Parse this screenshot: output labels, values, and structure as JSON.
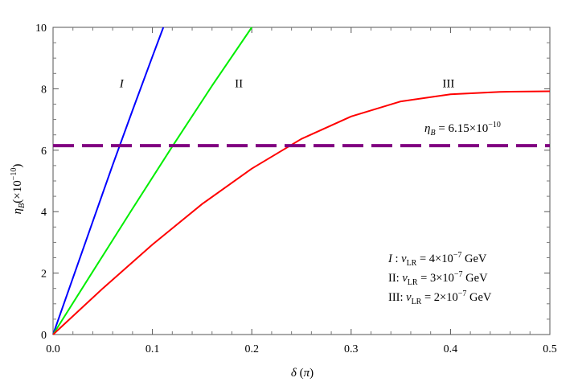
{
  "chart_data": {
    "type": "line",
    "xlabel": "δ (π)",
    "ylabel": "η_B(×10^-10)",
    "xlim": [
      0,
      0.5
    ],
    "ylim": [
      0,
      10
    ],
    "xticks": [
      0.0,
      0.1,
      0.2,
      0.3,
      0.4,
      0.5
    ],
    "xtick_labels": [
      "0.0",
      "0.1",
      "0.2",
      "0.3",
      "0.4",
      "0.5"
    ],
    "yticks": [
      0,
      2,
      4,
      6,
      8,
      10
    ],
    "ytick_labels": [
      "0",
      "2",
      "4",
      "6",
      "8",
      "10"
    ],
    "grid": false,
    "series": [
      {
        "name": "I",
        "color": "#0000ff",
        "x": [
          0,
          0.02,
          0.04,
          0.06,
          0.08,
          0.1,
          0.111
        ],
        "y": [
          0,
          1.84,
          3.68,
          5.52,
          7.3,
          9.05,
          10.0
        ]
      },
      {
        "name": "II",
        "color": "#00ee00",
        "x": [
          0,
          0.04,
          0.08,
          0.12,
          0.16,
          0.2
        ],
        "y": [
          0,
          2.05,
          4.1,
          6.12,
          8.1,
          10.0
        ]
      },
      {
        "name": "III",
        "color": "#ff0000",
        "x": [
          0,
          0.05,
          0.1,
          0.15,
          0.2,
          0.25,
          0.3,
          0.35,
          0.4,
          0.45,
          0.5
        ],
        "y": [
          0,
          1.5,
          2.93,
          4.25,
          5.4,
          6.37,
          7.1,
          7.59,
          7.82,
          7.9,
          7.92
        ]
      }
    ],
    "reference_line": {
      "y": 6.15,
      "color": "#800080",
      "style": "dashed",
      "label": "η_B = 6.15 × 10^-10"
    },
    "curve_labels": [
      {
        "text": "I",
        "x": 0.069,
        "y": 8.0
      },
      {
        "text": "II",
        "x": 0.187,
        "y": 8.0
      },
      {
        "text": "III",
        "x": 0.398,
        "y": 8.0
      }
    ],
    "legend_lines": [
      "I : v_LR = 4 × 10^-7 GeV",
      "II: v_LR = 3 × 10^-7 GeV",
      "III: v_LR = 2 × 10^-7 GeV"
    ]
  }
}
